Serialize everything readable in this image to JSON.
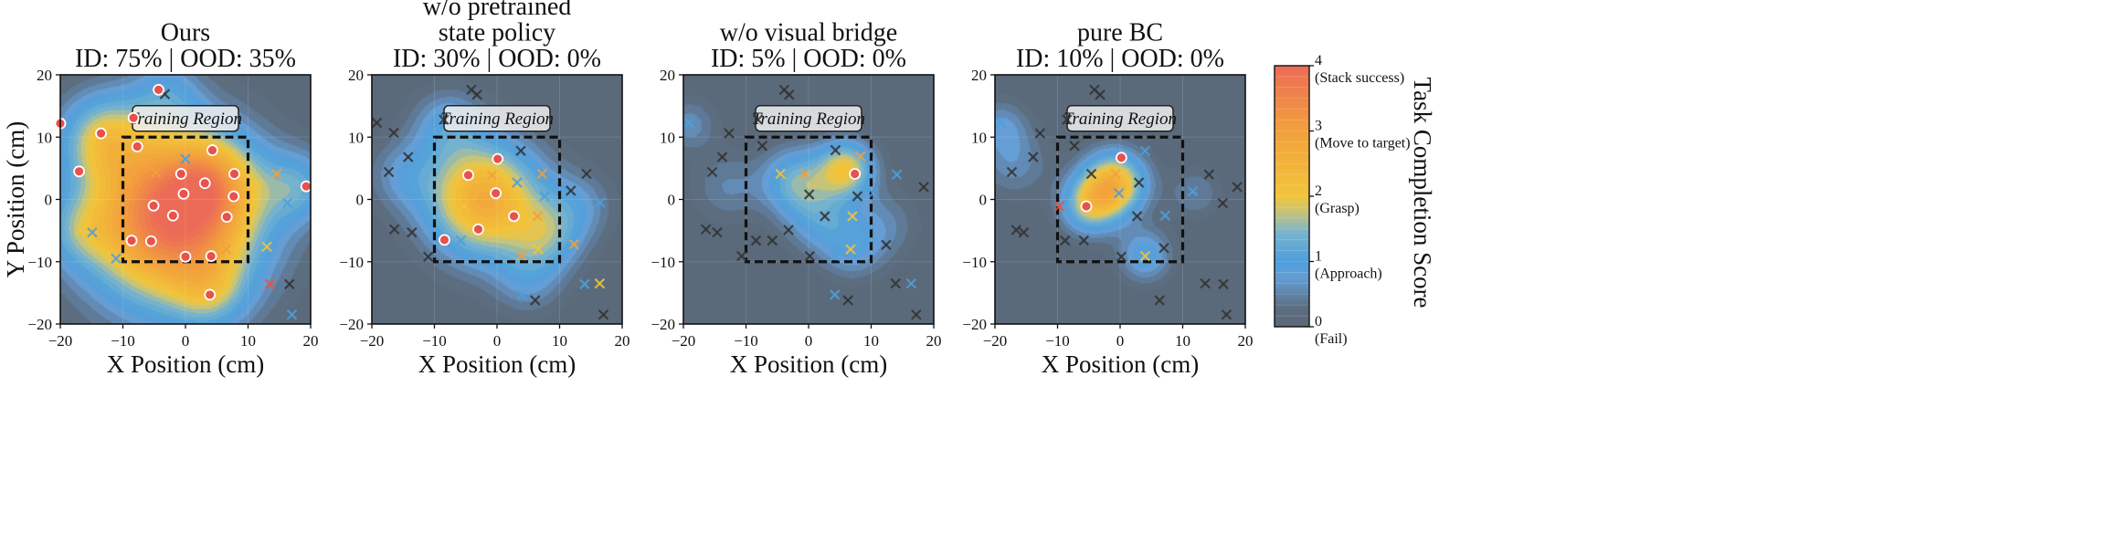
{
  "figure": {
    "colorbar_label": "Task Completion Score",
    "region_label": "Training Region",
    "colors": {
      "fail": "#5b6878",
      "approach": "#4e9fdc",
      "grasp": "#f2c53a",
      "move": "#f2a03c",
      "stack": "#ec6b57"
    }
  },
  "chart_data": [
    {
      "type": "contour",
      "title_lines": [
        "Ours",
        "ID: 75% | OOD: 35%"
      ],
      "xlabel": "X Position (cm)",
      "ylabel": "Y Position (cm)",
      "xlim": [
        -20,
        20
      ],
      "ylim": [
        -20,
        20
      ],
      "xticks": [
        "−20",
        "−10",
        "0",
        "10",
        "20"
      ],
      "yticks": [
        "20",
        "10",
        "0",
        "−10",
        "−20"
      ],
      "training_region": {
        "x": [
          -10,
          10
        ],
        "y": [
          -10,
          10
        ]
      },
      "bumps": [
        [
          -2,
          -3,
          4.0,
          9.5
        ],
        [
          4,
          3,
          1.2,
          5
        ],
        [
          -13,
          10,
          1.5,
          5
        ],
        [
          18,
          2,
          1.0,
          4
        ],
        [
          -3,
          17,
          0.7,
          4
        ],
        [
          4,
          -15,
          0.8,
          4
        ],
        [
          -17,
          -5,
          0.7,
          4
        ]
      ],
      "success": [
        [
          -20,
          12.2
        ],
        [
          -4.3,
          17.6
        ],
        [
          -13.5,
          10.6
        ],
        [
          -8.3,
          13.1
        ],
        [
          -7.7,
          8.5
        ],
        [
          -17,
          4.5
        ],
        [
          4.3,
          7.9
        ],
        [
          -0.7,
          4.1
        ],
        [
          7.8,
          4.1
        ],
        [
          3.1,
          2.6
        ],
        [
          19.3,
          2.1
        ],
        [
          -0.3,
          0.9
        ],
        [
          7.7,
          0.5
        ],
        [
          -5.1,
          -1
        ],
        [
          -2,
          -2.6
        ],
        [
          6.6,
          -2.8
        ],
        [
          -8.6,
          -6.6
        ],
        [
          -5.5,
          -6.7
        ],
        [
          0,
          -9.2
        ],
        [
          4.1,
          -9.1
        ],
        [
          3.9,
          -15.3
        ]
      ],
      "failure": [
        [
          -3.3,
          16.9,
          "#333333"
        ],
        [
          0,
          6.5,
          "#4e9fdc"
        ],
        [
          -14.4,
          6.8,
          "#f2c53a"
        ],
        [
          -4.7,
          4.3,
          "#f2a03c"
        ],
        [
          11.5,
          2.3,
          "#f2c53a"
        ],
        [
          14.6,
          4.1,
          "#f2a03c"
        ],
        [
          16.3,
          -0.6,
          "#4e9fdc"
        ],
        [
          -9.9,
          1.1,
          "#f2a03c"
        ],
        [
          13.5,
          -13.6,
          "#e8553c"
        ],
        [
          16.6,
          -13.6,
          "#333333"
        ],
        [
          -14.9,
          -5.3,
          "#4e9fdc"
        ],
        [
          -16.7,
          -5,
          "#f2c53a"
        ],
        [
          -11.1,
          -9.5,
          "#4e9fdc"
        ],
        [
          6.5,
          -8,
          "#f2a03c"
        ],
        [
          13,
          -7.6,
          "#f2c53a"
        ],
        [
          17,
          -18.5,
          "#4e9fdc"
        ]
      ]
    },
    {
      "type": "contour",
      "title_lines": [
        "w/o pretrained",
        "state policy",
        "ID: 30% | OOD: 0%"
      ],
      "xlabel": "X Position (cm)",
      "ylabel": "",
      "xlim": [
        -20,
        20
      ],
      "ylim": [
        -20,
        20
      ],
      "xticks": [
        "−20",
        "−10",
        "0",
        "10",
        "20"
      ],
      "yticks": [
        "20",
        "10",
        "0",
        "−10",
        "−20"
      ],
      "training_region": {
        "x": [
          -10,
          10
        ],
        "y": [
          -10,
          10
        ]
      },
      "bumps": [
        [
          -2,
          0,
          2.7,
          6.5
        ],
        [
          8,
          -6,
          1.0,
          4
        ],
        [
          -8,
          12,
          0.8,
          4
        ],
        [
          13,
          -1,
          0.6,
          4
        ],
        [
          -15,
          4,
          0.6,
          4
        ],
        [
          5,
          -13,
          0.6,
          4
        ]
      ],
      "success": [
        [
          0.1,
          6.5
        ],
        [
          -4.6,
          3.9
        ],
        [
          -0.2,
          1
        ],
        [
          -3,
          -4.8
        ],
        [
          -8.4,
          -6.5
        ],
        [
          2.7,
          -2.7
        ]
      ],
      "failure": [
        [
          -4.1,
          17.6,
          "#333333"
        ],
        [
          -3.2,
          16.8,
          "#333333"
        ],
        [
          -19.2,
          12.3,
          "#333333"
        ],
        [
          -8.5,
          12.8,
          "#333333"
        ],
        [
          -16.5,
          10.7,
          "#333333"
        ],
        [
          -14.2,
          6.8,
          "#333333"
        ],
        [
          3.8,
          7.8,
          "#333333"
        ],
        [
          0.2,
          6.6,
          "#4e9fdc"
        ],
        [
          -17.3,
          4.4,
          "#333333"
        ],
        [
          -0.8,
          3.9,
          "#f2a03c"
        ],
        [
          7.2,
          4.1,
          "#f2a03c"
        ],
        [
          3.2,
          2.7,
          "#4e9fdc"
        ],
        [
          14.3,
          4.1,
          "#333333"
        ],
        [
          11.8,
          1.4,
          "#333333"
        ],
        [
          7.6,
          0.5,
          "#4e9fdc"
        ],
        [
          16.5,
          -0.5,
          "#4e9fdc"
        ],
        [
          -5.3,
          -1.1,
          "#f2c53a"
        ],
        [
          6.5,
          -2.7,
          "#f2a03c"
        ],
        [
          -13.6,
          -5.3,
          "#333333"
        ],
        [
          -16.4,
          -4.8,
          "#333333"
        ],
        [
          -5.8,
          -6.6,
          "#4e9fdc"
        ],
        [
          12.3,
          -7.2,
          "#f2a03c"
        ],
        [
          3.9,
          -9,
          "#f2a03c"
        ],
        [
          6.6,
          -8,
          "#f2c53a"
        ],
        [
          -11,
          -9.2,
          "#333333"
        ],
        [
          14,
          -13.6,
          "#4e9fdc"
        ],
        [
          16.4,
          -13.5,
          "#f2c53a"
        ],
        [
          4,
          -15.3,
          "#4e9fdc"
        ],
        [
          6.1,
          -16.2,
          "#333333"
        ],
        [
          17,
          -18.5,
          "#333333"
        ]
      ]
    },
    {
      "type": "contour",
      "title_lines": [
        "w/o visual bridge",
        "ID: 5% | OOD: 0%"
      ],
      "xlabel": "X Position (cm)",
      "ylabel": "",
      "xlim": [
        -20,
        20
      ],
      "ylim": [
        -20,
        20
      ],
      "xticks": [
        "−20",
        "−10",
        "0",
        "10",
        "20"
      ],
      "yticks": [
        "20",
        "10",
        "0",
        "−10",
        "−20"
      ],
      "training_region": {
        "x": [
          -10,
          10
        ],
        "y": [
          -10,
          10
        ]
      },
      "bumps": [
        [
          6,
          5,
          1.9,
          3.2
        ],
        [
          -2,
          3,
          1.3,
          3.8
        ],
        [
          2,
          -3,
          0.9,
          4
        ],
        [
          7,
          -8,
          0.7,
          3.5
        ],
        [
          -19,
          12,
          0.6,
          3
        ],
        [
          12,
          -4,
          0.5,
          4
        ],
        [
          -13,
          2,
          0.5,
          4
        ]
      ],
      "success": [
        [
          7.4,
          4.1
        ]
      ],
      "failure": [
        [
          -3.9,
          17.6,
          "#333333"
        ],
        [
          -3.1,
          16.8,
          "#333333"
        ],
        [
          -19.1,
          12.3,
          "#4e9fdc"
        ],
        [
          -8.1,
          12.8,
          "#333333"
        ],
        [
          -12.7,
          10.6,
          "#333333"
        ],
        [
          -7.4,
          8.6,
          "#333333"
        ],
        [
          -13.8,
          6.8,
          "#333333"
        ],
        [
          4.3,
          7.9,
          "#333333"
        ],
        [
          8.3,
          6.9,
          "#f2a03c"
        ],
        [
          -15.4,
          4.4,
          "#333333"
        ],
        [
          -4.5,
          4.1,
          "#f2c53a"
        ],
        [
          -0.6,
          4.1,
          "#f2a03c"
        ],
        [
          7.8,
          0.5,
          "#333333"
        ],
        [
          14.1,
          4,
          "#4e9fdc"
        ],
        [
          18.4,
          2,
          "#333333"
        ],
        [
          0.1,
          0.8,
          "#333333"
        ],
        [
          10.3,
          1,
          "#4e9fdc"
        ],
        [
          2.6,
          -2.7,
          "#333333"
        ],
        [
          -3.2,
          -4.9,
          "#333333"
        ],
        [
          7,
          -2.7,
          "#f2c53a"
        ],
        [
          -16.4,
          -4.8,
          "#333333"
        ],
        [
          -14.6,
          -5.3,
          "#333333"
        ],
        [
          -8.4,
          -6.6,
          "#333333"
        ],
        [
          -5.8,
          -6.6,
          "#333333"
        ],
        [
          12.4,
          -7.3,
          "#333333"
        ],
        [
          6.7,
          -8,
          "#f2c53a"
        ],
        [
          4.2,
          -9.1,
          "#4e9fdc"
        ],
        [
          0.2,
          -9.1,
          "#333333"
        ],
        [
          -10.7,
          -9.1,
          "#333333"
        ],
        [
          13.9,
          -13.5,
          "#333333"
        ],
        [
          16.4,
          -13.5,
          "#4e9fdc"
        ],
        [
          6.3,
          -16.2,
          "#333333"
        ],
        [
          4.2,
          -15.3,
          "#4e9fdc"
        ],
        [
          17.2,
          -18.5,
          "#333333"
        ]
      ]
    },
    {
      "type": "contour",
      "title_lines": [
        "pure BC",
        "ID: 10% | OOD: 0%"
      ],
      "xlabel": "X Position (cm)",
      "ylabel": "",
      "xlim": [
        -20,
        20
      ],
      "ylim": [
        -20,
        20
      ],
      "xticks": [
        "−20",
        "−10",
        "0",
        "10",
        "20"
      ],
      "yticks": [
        "20",
        "10",
        "0",
        "−10",
        "−20"
      ],
      "training_region": {
        "x": [
          -10,
          10
        ],
        "y": [
          -10,
          10
        ]
      },
      "bumps": [
        [
          -1,
          2.5,
          2.4,
          3.6
        ],
        [
          -5,
          -1,
          1.5,
          3.2
        ],
        [
          4,
          -9,
          1.0,
          3
        ],
        [
          -17,
          6,
          0.6,
          4
        ],
        [
          12,
          1,
          0.5,
          3
        ],
        [
          -19,
          12,
          0.6,
          3
        ]
      ],
      "success": [
        [
          0.2,
          6.7
        ],
        [
          -5.4,
          -1.1
        ]
      ],
      "failure": [
        [
          -4.1,
          17.6,
          "#333333"
        ],
        [
          -3.2,
          16.8,
          "#333333"
        ],
        [
          -19.1,
          12.3,
          "#4e9fdc"
        ],
        [
          -8.5,
          12.8,
          "#333333"
        ],
        [
          -12.8,
          10.6,
          "#333333"
        ],
        [
          -7.3,
          8.6,
          "#333333"
        ],
        [
          -13.9,
          6.8,
          "#333333"
        ],
        [
          4,
          7.8,
          "#4e9fdc"
        ],
        [
          -17.3,
          4.4,
          "#333333"
        ],
        [
          -0.7,
          4.1,
          "#f2a03c"
        ],
        [
          -4.6,
          4.1,
          "#333333"
        ],
        [
          3,
          2.7,
          "#333333"
        ],
        [
          14.2,
          4,
          "#333333"
        ],
        [
          18.7,
          2,
          "#333333"
        ],
        [
          -0.2,
          1,
          "#4e9fdc"
        ],
        [
          11.6,
          1.3,
          "#4e9fdc"
        ],
        [
          -9.7,
          -1.1,
          "#e8553c"
        ],
        [
          16.4,
          -0.6,
          "#333333"
        ],
        [
          7.2,
          -2.6,
          "#4e9fdc"
        ],
        [
          2.7,
          -2.7,
          "#333333"
        ],
        [
          -15.4,
          -5.3,
          "#333333"
        ],
        [
          -16.6,
          -4.9,
          "#333333"
        ],
        [
          -8.8,
          -6.6,
          "#333333"
        ],
        [
          -5.8,
          -6.6,
          "#333333"
        ],
        [
          7,
          -7.8,
          "#333333"
        ],
        [
          4,
          -9.1,
          "#f2c53a"
        ],
        [
          0.2,
          -9.2,
          "#333333"
        ],
        [
          13.6,
          -13.5,
          "#333333"
        ],
        [
          16.5,
          -13.6,
          "#333333"
        ],
        [
          6.3,
          -16.2,
          "#333333"
        ],
        [
          17,
          -18.5,
          "#333333"
        ]
      ]
    }
  ],
  "colorbar": {
    "vmin": 0,
    "vmax": 4,
    "ticks": [
      {
        "value": 4,
        "num": "4",
        "text": "(Stack success)"
      },
      {
        "value": 3,
        "num": "3",
        "text": "(Move to target)"
      },
      {
        "value": 2,
        "num": "2",
        "text": "(Grasp)"
      },
      {
        "value": 1,
        "num": "1",
        "text": "(Approach)"
      },
      {
        "value": 0,
        "num": "0",
        "text": "(Fail)"
      }
    ]
  }
}
